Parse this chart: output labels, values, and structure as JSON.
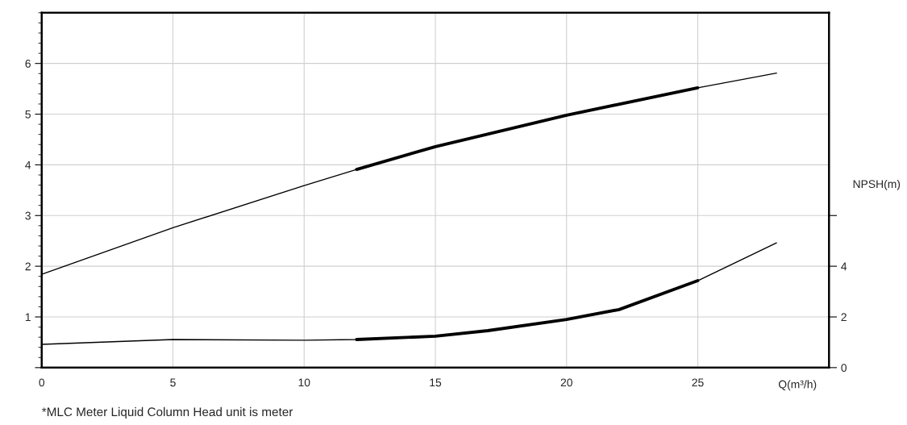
{
  "chart_data": {
    "type": "line",
    "xlabel": "Q(m³/h)",
    "y2label": "NPSH(m)",
    "annotations": [
      "*MLC Meter Liquid Column Head unit is meter"
    ],
    "series": [
      {
        "color": "#000000",
        "x": [
          0,
          5,
          10,
          12,
          15,
          20,
          25,
          28
        ],
        "values": [
          1.84,
          2.76,
          3.59,
          3.91,
          4.36,
          4.98,
          5.52,
          5.81
        ]
      },
      {
        "color": "#000000",
        "x": [
          12,
          15,
          20,
          25
        ],
        "values": [
          3.91,
          4.36,
          4.98,
          5.52
        ]
      },
      {
        "color": "#000000",
        "axis": "y2",
        "x": [
          0,
          5,
          10,
          12,
          15,
          17,
          20,
          22,
          25,
          28
        ],
        "values": [
          0.92,
          1.11,
          1.08,
          1.11,
          1.24,
          1.46,
          1.9,
          2.29,
          3.43,
          4.92
        ]
      },
      {
        "color": "#000000",
        "axis": "y2",
        "x": [
          12,
          15,
          17,
          20,
          22,
          25
        ],
        "values": [
          1.11,
          1.24,
          1.46,
          1.9,
          2.29,
          3.43
        ]
      }
    ],
    "xlim": [
      0,
      30
    ],
    "xticks": [
      0,
      5,
      10,
      15,
      20,
      25
    ],
    "ylim": [
      0,
      7
    ],
    "yticks": [
      {
        "value": 0,
        "label": null
      },
      1,
      2,
      3,
      4,
      5,
      6
    ],
    "y2lim": [
      0,
      14
    ],
    "y2ticks": [
      0,
      2,
      4,
      {
        "value": 6,
        "label": null
      }
    ],
    "grid": true,
    "legend": false,
    "marker": "none",
    "line_style": "solid"
  }
}
